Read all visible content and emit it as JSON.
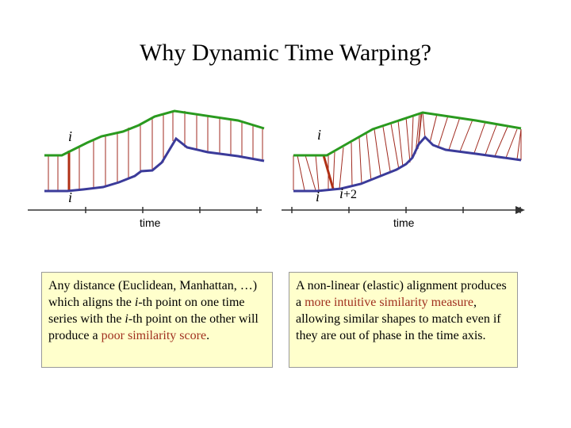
{
  "title": "Why Dynamic Time Warping?",
  "colors": {
    "top_series": "#2a9a1f",
    "bottom_series": "#3b3b9a",
    "links": "#a02a1f",
    "highlight": "#b03015"
  },
  "left_panel": {
    "label_top": "i",
    "label_bottom": "i",
    "axis_label": "time"
  },
  "right_panel": {
    "label_top": "i",
    "label_bottom": "i",
    "label_bottom2_var": "i",
    "label_bottom2_suffix": "+2",
    "axis_label": "time"
  },
  "box_left": {
    "p1": "Any distance (Euclidean, Manhattan, …) which aligns the ",
    "i1": "i",
    "p2": "-th point on one time series with the ",
    "i2": "i",
    "p3": "-th point on the other will produce a ",
    "hl": "poor similarity score",
    "p4": "."
  },
  "box_right": {
    "p1": "A non-linear (elastic) alignment produces a ",
    "hl": "more intuitive similarity measure",
    "p2": ", allowing similar shapes to match even if they are out of phase in the time axis."
  }
}
